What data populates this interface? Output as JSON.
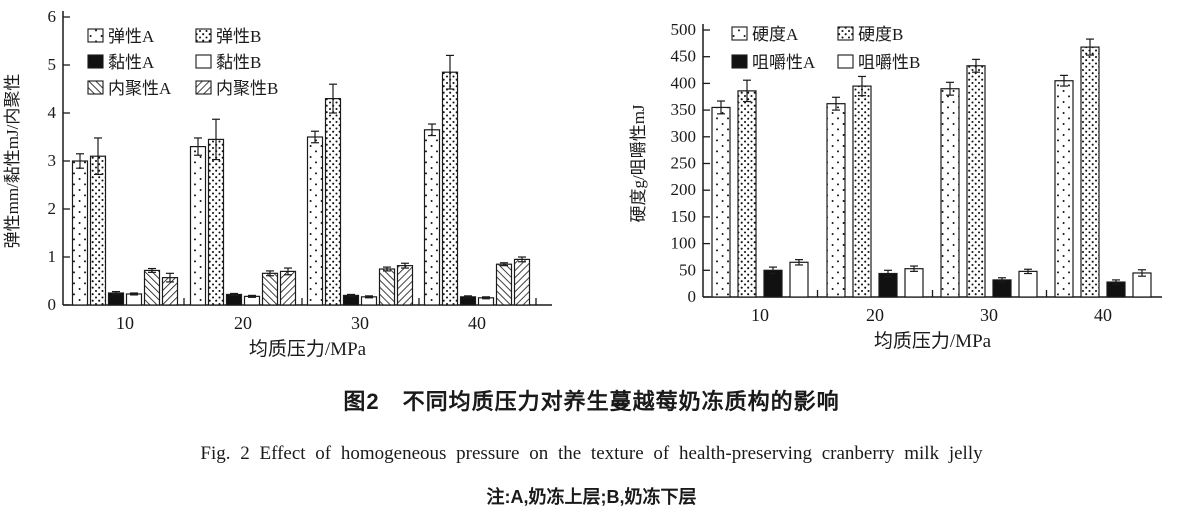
{
  "figure": {
    "caption_zh": "图2　不同均质压力对养生蔓越莓奶冻质构的影响",
    "caption_en": "Fig. 2  Effect of homogeneous pressure on the texture of health-preserving cranberry milk jelly",
    "note": "注:A,奶冻上层;B,奶冻下层"
  },
  "colors": {
    "bar_stroke": "#1a1a1a",
    "axis": "#1a1a1a",
    "text": "#1a1a1a",
    "background": "#ffffff"
  },
  "chart_data": [
    {
      "type": "bar",
      "id": "elasticity-viscosity-cohesiveness",
      "title": "",
      "xlabel": "均质压力/MPa",
      "ylabel": "弹性mm/黏性mJ/内聚性",
      "categories": [
        "10",
        "20",
        "30",
        "40"
      ],
      "ylim": [
        0,
        6
      ],
      "ytick_step": 1,
      "grid": false,
      "legend_position": "top-left-inside",
      "legend_columns": 2,
      "error_bars": true,
      "series": [
        {
          "name": "弹性A",
          "slug": "elasticity-a",
          "pattern": "dots-sparse",
          "values": [
            3.0,
            3.3,
            3.5,
            3.65
          ],
          "errors": [
            0.15,
            0.18,
            0.12,
            0.12
          ]
        },
        {
          "name": "弹性B",
          "slug": "elasticity-b",
          "pattern": "dots-dense",
          "values": [
            3.1,
            3.45,
            4.3,
            4.85
          ],
          "errors": [
            0.38,
            0.42,
            0.3,
            0.35
          ]
        },
        {
          "name": "黏性A",
          "slug": "viscosity-a",
          "pattern": "solid-black",
          "values": [
            0.25,
            0.22,
            0.2,
            0.17
          ],
          "errors": [
            0.03,
            0.02,
            0.02,
            0.02
          ]
        },
        {
          "name": "黏性B",
          "slug": "viscosity-b",
          "pattern": "white",
          "values": [
            0.23,
            0.18,
            0.17,
            0.15
          ],
          "errors": [
            0.02,
            0.02,
            0.02,
            0.02
          ]
        },
        {
          "name": "内聚性A",
          "slug": "cohesiveness-a",
          "pattern": "hatch-back",
          "values": [
            0.72,
            0.66,
            0.75,
            0.85
          ],
          "errors": [
            0.04,
            0.05,
            0.04,
            0.03
          ]
        },
        {
          "name": "内聚性B",
          "slug": "cohesiveness-b",
          "pattern": "hatch-fwd",
          "values": [
            0.57,
            0.7,
            0.82,
            0.95
          ],
          "errors": [
            0.09,
            0.07,
            0.05,
            0.05
          ]
        }
      ]
    },
    {
      "type": "bar",
      "id": "hardness-chewiness",
      "title": "",
      "xlabel": "均质压力/MPa",
      "ylabel": "硬度g/咀嚼性mJ",
      "categories": [
        "10",
        "20",
        "30",
        "40"
      ],
      "ylim": [
        0,
        500
      ],
      "ytick_step": 50,
      "grid": false,
      "legend_position": "top-left-inside",
      "legend_columns": 2,
      "error_bars": true,
      "series": [
        {
          "name": "硬度A",
          "slug": "hardness-a",
          "pattern": "dots-sparse",
          "values": [
            355,
            362,
            390,
            405
          ],
          "errors": [
            12,
            12,
            12,
            10
          ]
        },
        {
          "name": "硬度B",
          "slug": "hardness-b",
          "pattern": "dots-dense",
          "values": [
            386,
            395,
            433,
            468
          ],
          "errors": [
            20,
            18,
            12,
            15
          ]
        },
        {
          "name": "咀嚼性A",
          "slug": "chewiness-a",
          "pattern": "solid-black",
          "values": [
            50,
            44,
            32,
            28
          ],
          "errors": [
            6,
            6,
            4,
            4
          ]
        },
        {
          "name": "咀嚼性B",
          "slug": "chewiness-b",
          "pattern": "white",
          "values": [
            65,
            53,
            48,
            45
          ],
          "errors": [
            5,
            5,
            4,
            6
          ]
        }
      ]
    }
  ]
}
